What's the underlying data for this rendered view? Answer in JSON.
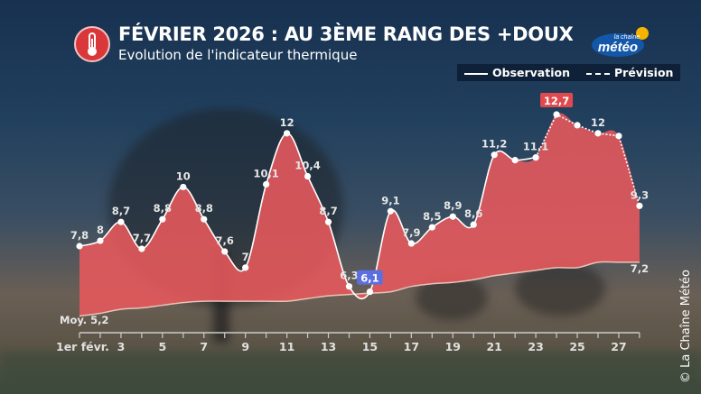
{
  "header": {
    "title": "FÉVRIER 2026 : AU 3ÈME RANG DES +DOUX",
    "subtitle": "Evolution de l'indicateur thermique",
    "icon": "thermometer-icon"
  },
  "logo": {
    "line1": "la chaîne",
    "line2": "météo"
  },
  "copyright": "© La Chaîne Météo",
  "legend": {
    "observation": "Observation",
    "forecast": "Prévision"
  },
  "colors": {
    "fill": "#e8595c",
    "line": "#ffffff",
    "min_badge": "#5b6fe0",
    "max_badge": "#e04a4e"
  },
  "chart_data": {
    "type": "area",
    "x": [
      1,
      2,
      3,
      4,
      5,
      6,
      7,
      8,
      9,
      10,
      11,
      12,
      13,
      14,
      15,
      16,
      17,
      18,
      19,
      20,
      21,
      22,
      23,
      24,
      25,
      26,
      27,
      28
    ],
    "series": [
      {
        "name": "Observation",
        "values": [
          7.8,
          8,
          8.7,
          7.7,
          8.8,
          10,
          8.8,
          7.6,
          7,
          10.1,
          12,
          10.4,
          8.7,
          6.3,
          6.1,
          9.1,
          7.9,
          8.5,
          8.9,
          8.6,
          11.2,
          11.0,
          11.1,
          null,
          null,
          null,
          null,
          null
        ]
      },
      {
        "name": "Prévision",
        "values": [
          null,
          null,
          null,
          null,
          null,
          null,
          null,
          null,
          null,
          null,
          null,
          null,
          null,
          null,
          null,
          null,
          null,
          null,
          null,
          null,
          null,
          null,
          11.1,
          12.7,
          12.3,
          12,
          11.9,
          9.3
        ]
      },
      {
        "name": "Moy.",
        "values": [
          5.2,
          5.3,
          5.45,
          5.5,
          5.6,
          5.7,
          5.75,
          5.75,
          5.75,
          5.75,
          5.75,
          5.85,
          5.95,
          6.0,
          6.05,
          6.1,
          6.3,
          6.4,
          6.45,
          6.55,
          6.7,
          6.8,
          6.9,
          7.0,
          7.0,
          7.2,
          7.2,
          7.2
        ]
      }
    ],
    "point_labels": [
      "7,8",
      "8",
      "8,7",
      "7,7",
      "8,8",
      "10",
      "8,8",
      "7,6",
      "7",
      "10,1",
      "12",
      "10,4",
      "8,7",
      "6,3",
      "6,1",
      "9,1",
      "7,9",
      "8,5",
      "8,9",
      "8,6",
      "11,2",
      "",
      "11,1",
      "12,7",
      "",
      "12",
      "",
      "9,3"
    ],
    "min_label": "6,1",
    "max_label": "12,7",
    "normal_start_label": "Moy. 5,2",
    "normal_end_label": "7,2",
    "tick_labels": [
      "1er févr.",
      "3",
      "5",
      "7",
      "9",
      "11",
      "13",
      "15",
      "17",
      "19",
      "21",
      "23",
      "25",
      "27"
    ],
    "ylim": [
      4.4,
      13.5
    ],
    "grid": false
  }
}
